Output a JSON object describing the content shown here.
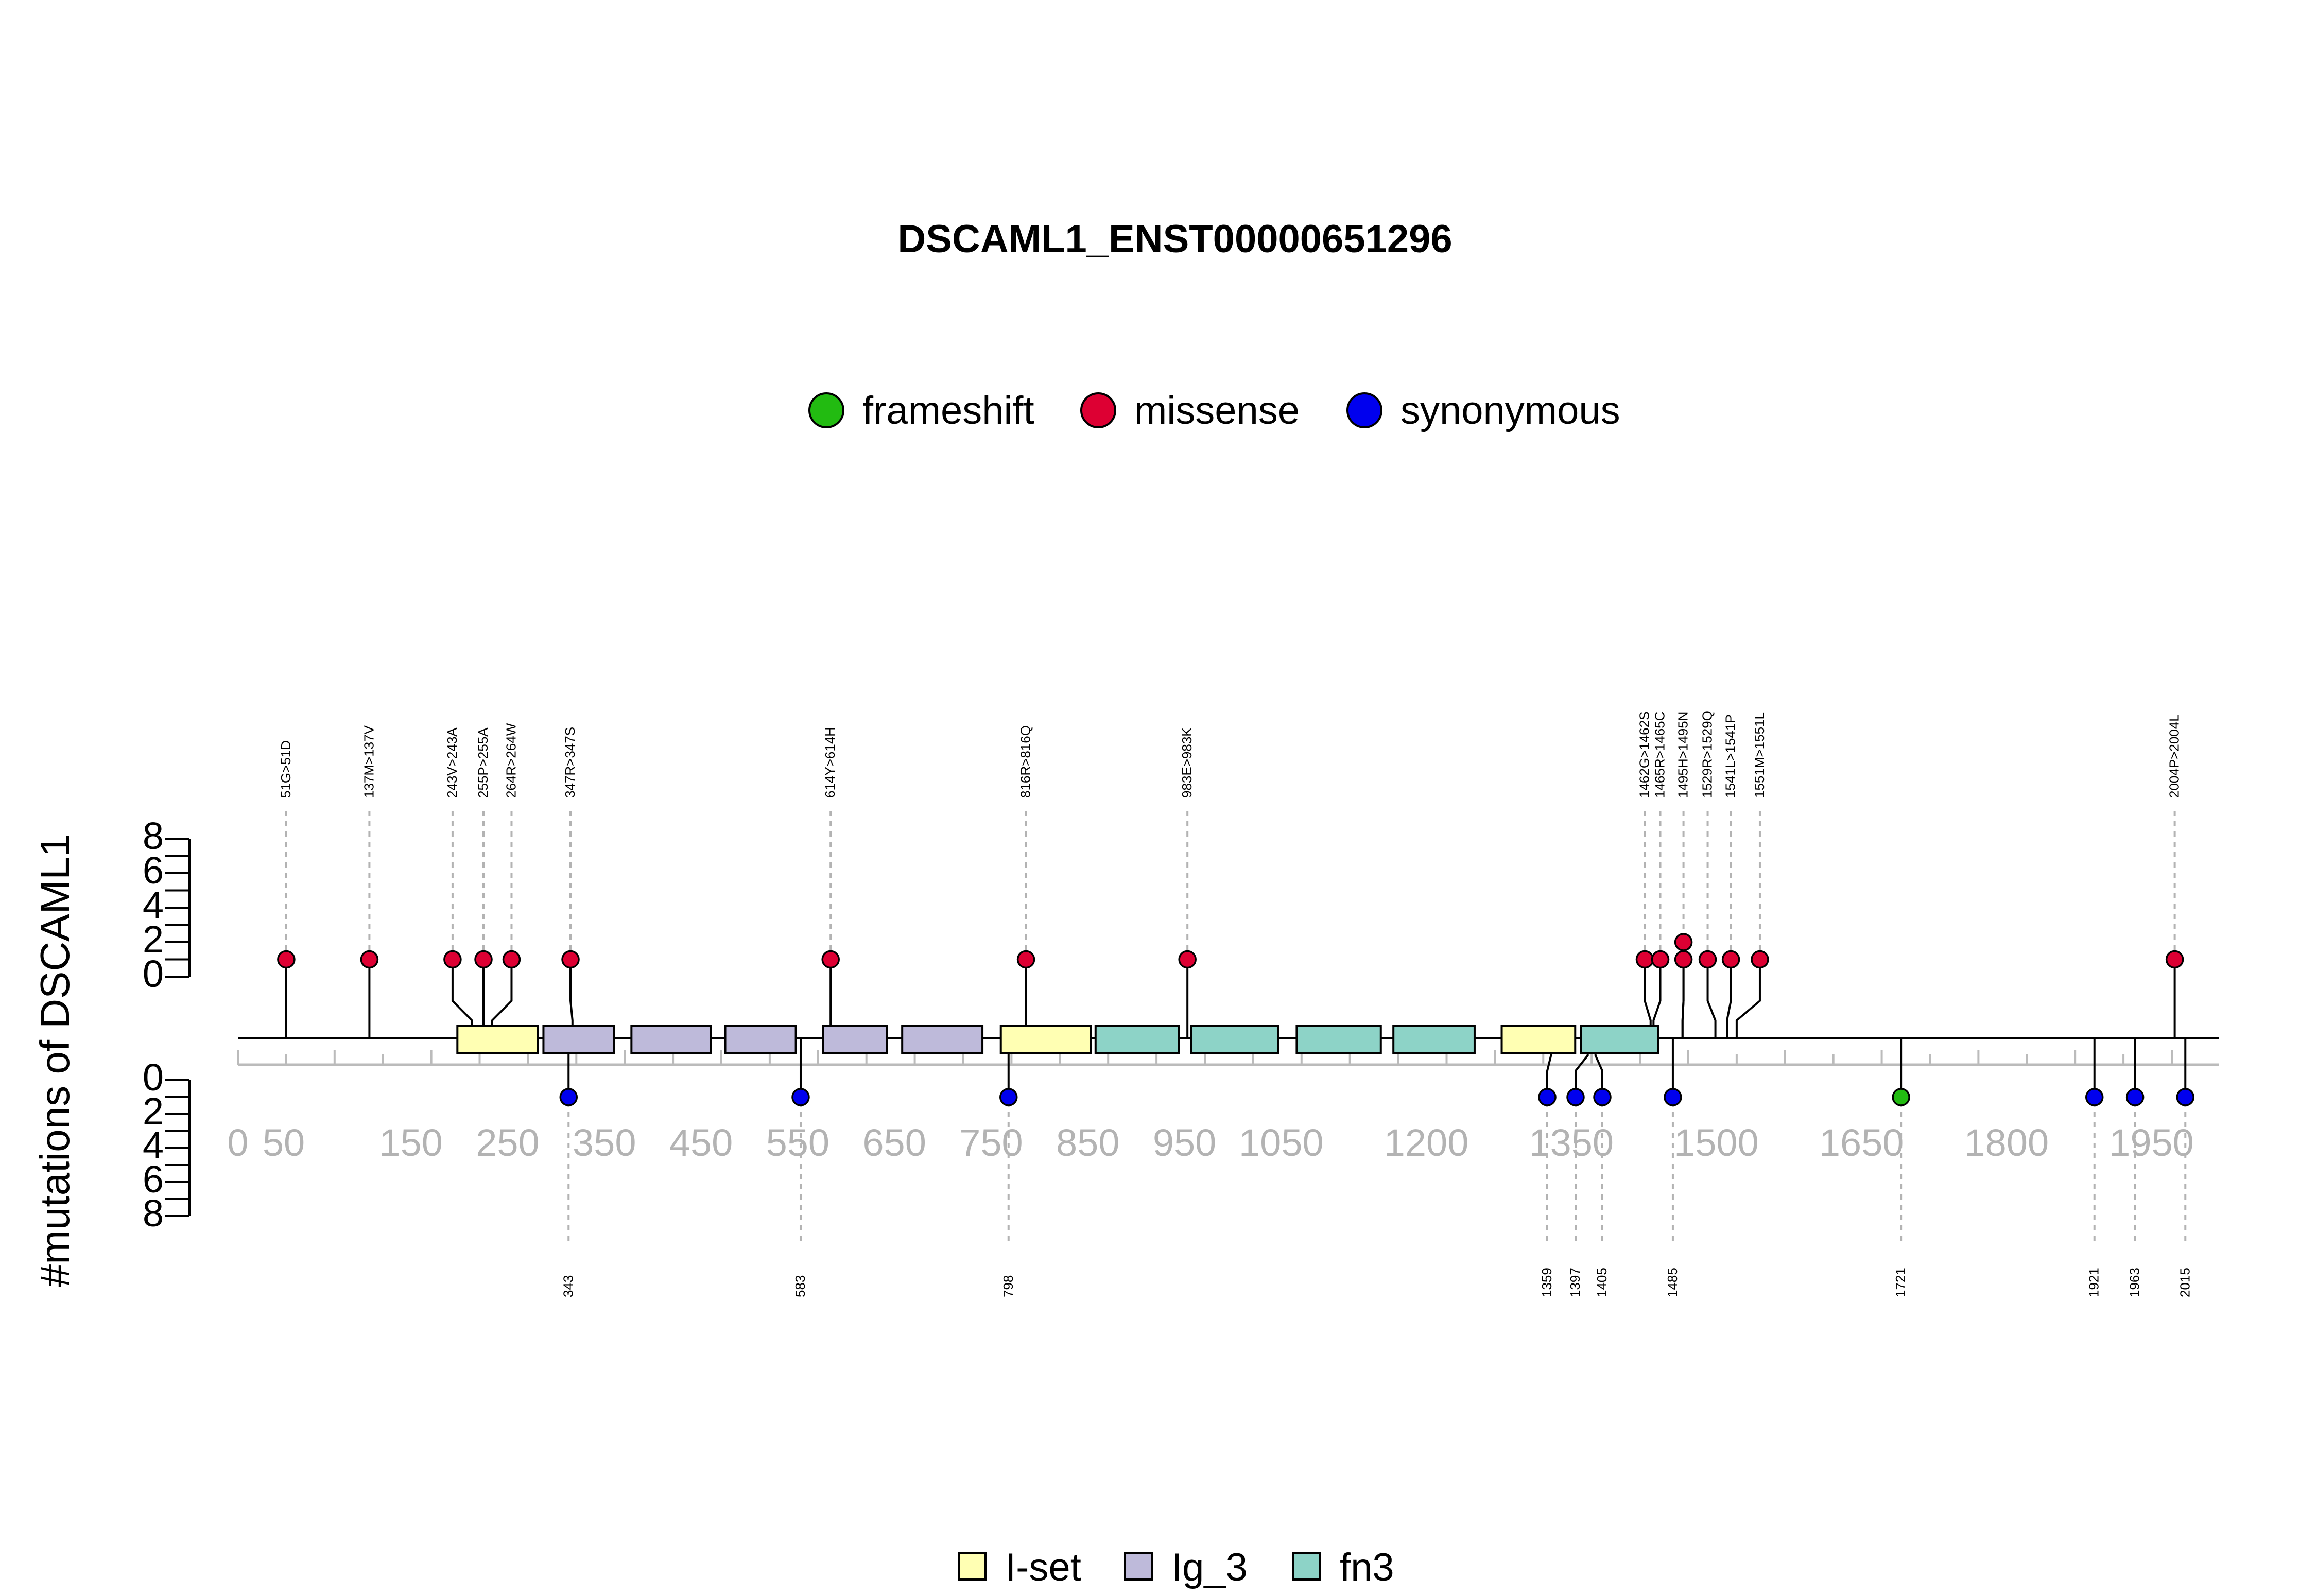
{
  "chart_data": {
    "type": "lollipop",
    "title": "DSCAML1_ENST00000651296",
    "ylabel": "#mutations of DSCAML1",
    "x_range": [
      1,
      2050
    ],
    "y_top_ticks": [
      "0",
      "2",
      "4",
      "6",
      "8"
    ],
    "y_bottom_ticks": [
      "0",
      "2",
      "4",
      "6",
      "8"
    ],
    "x_ticks": [
      "0",
      "50",
      "150",
      "250",
      "350",
      "450",
      "550",
      "650",
      "750",
      "850",
      "950",
      "1050",
      "1200",
      "1350",
      "1500",
      "1650",
      "1800",
      "1950"
    ],
    "legend_mutations": [
      {
        "label": "frameshift",
        "color": "#22bb11"
      },
      {
        "label": "missense",
        "color": "#dd0033"
      },
      {
        "label": "synonymous",
        "color": "#0000ee"
      }
    ],
    "legend_domains": [
      {
        "label": "I-set",
        "color": "#ffffb3"
      },
      {
        "label": "Ig_3",
        "color": "#bebada"
      },
      {
        "label": "fn3",
        "color": "#8dd3c7"
      }
    ],
    "domains": [
      {
        "name": "I-set",
        "start": 228,
        "end": 311
      },
      {
        "name": "Ig_3",
        "start": 317,
        "end": 390
      },
      {
        "name": "Ig_3",
        "start": 408,
        "end": 490
      },
      {
        "name": "Ig_3",
        "start": 505,
        "end": 578
      },
      {
        "name": "Ig_3",
        "start": 606,
        "end": 672
      },
      {
        "name": "Ig_3",
        "start": 688,
        "end": 771
      },
      {
        "name": "I-set",
        "start": 790,
        "end": 883
      },
      {
        "name": "fn3",
        "start": 888,
        "end": 974
      },
      {
        "name": "fn3",
        "start": 987,
        "end": 1077
      },
      {
        "name": "fn3",
        "start": 1096,
        "end": 1183
      },
      {
        "name": "fn3",
        "start": 1196,
        "end": 1280
      },
      {
        "name": "I-set",
        "start": 1308,
        "end": 1384
      },
      {
        "name": "fn3",
        "start": 1390,
        "end": 1470
      }
    ],
    "missense": [
      {
        "pos": 51,
        "count": 1,
        "label": "51G>51D",
        "label_pos": 51
      },
      {
        "pos": 137,
        "count": 1,
        "label": "137M>137V",
        "label_pos": 137
      },
      {
        "pos": 243,
        "count": 1,
        "label": "243V>243A",
        "label_pos": 223
      },
      {
        "pos": 255,
        "count": 1,
        "label": "255P>255A",
        "label_pos": 255
      },
      {
        "pos": 264,
        "count": 1,
        "label": "264R>264W",
        "label_pos": 284
      },
      {
        "pos": 347,
        "count": 1,
        "label": "347R>347S",
        "label_pos": 345
      },
      {
        "pos": 614,
        "count": 1,
        "label": "614Y>614H",
        "label_pos": 614
      },
      {
        "pos": 816,
        "count": 1,
        "label": "816R>816Q",
        "label_pos": 816
      },
      {
        "pos": 983,
        "count": 1,
        "label": "983E>983K",
        "label_pos": 983
      },
      {
        "pos": 1462,
        "count": 1,
        "label": "1462G>1462S",
        "label_pos": 1456
      },
      {
        "pos": 1465,
        "count": 1,
        "label": "1465R>1465C",
        "label_pos": 1472
      },
      {
        "pos": 1495,
        "count": 2,
        "label": "1495H>1495N",
        "label_pos": 1496
      },
      {
        "pos": 1495,
        "count": 1,
        "label": "",
        "label_pos": 1496
      },
      {
        "pos": 1529,
        "count": 1,
        "label": "1529R>1529Q",
        "label_pos": 1521
      },
      {
        "pos": 1541,
        "count": 1,
        "label": "1541L>1541P",
        "label_pos": 1545
      },
      {
        "pos": 1551,
        "count": 1,
        "label": "1551M>1551L",
        "label_pos": 1575
      },
      {
        "pos": 2004,
        "count": 1,
        "label": "2004P>2004L",
        "label_pos": 2004
      }
    ],
    "lower": [
      {
        "pos": 343,
        "count": 1,
        "label": "343",
        "type": "synonymous"
      },
      {
        "pos": 583,
        "count": 1,
        "label": "583",
        "type": "synonymous"
      },
      {
        "pos": 798,
        "count": 1,
        "label": "798",
        "type": "synonymous"
      },
      {
        "pos": 1359,
        "count": 1,
        "label": "1359",
        "type": "synonymous"
      },
      {
        "pos": 1397,
        "count": 1,
        "label": "1397",
        "type": "synonymous"
      },
      {
        "pos": 1405,
        "count": 1,
        "label": "1405",
        "type": "synonymous"
      },
      {
        "pos": 1485,
        "count": 1,
        "label": "1485",
        "type": "synonymous"
      },
      {
        "pos": 1721,
        "count": 1,
        "label": "1721",
        "type": "frameshift"
      },
      {
        "pos": 1921,
        "count": 1,
        "label": "1921",
        "type": "synonymous"
      },
      {
        "pos": 1963,
        "count": 1,
        "label": "1963",
        "type": "synonymous"
      },
      {
        "pos": 2015,
        "count": 1,
        "label": "2015",
        "type": "synonymous"
      }
    ]
  }
}
